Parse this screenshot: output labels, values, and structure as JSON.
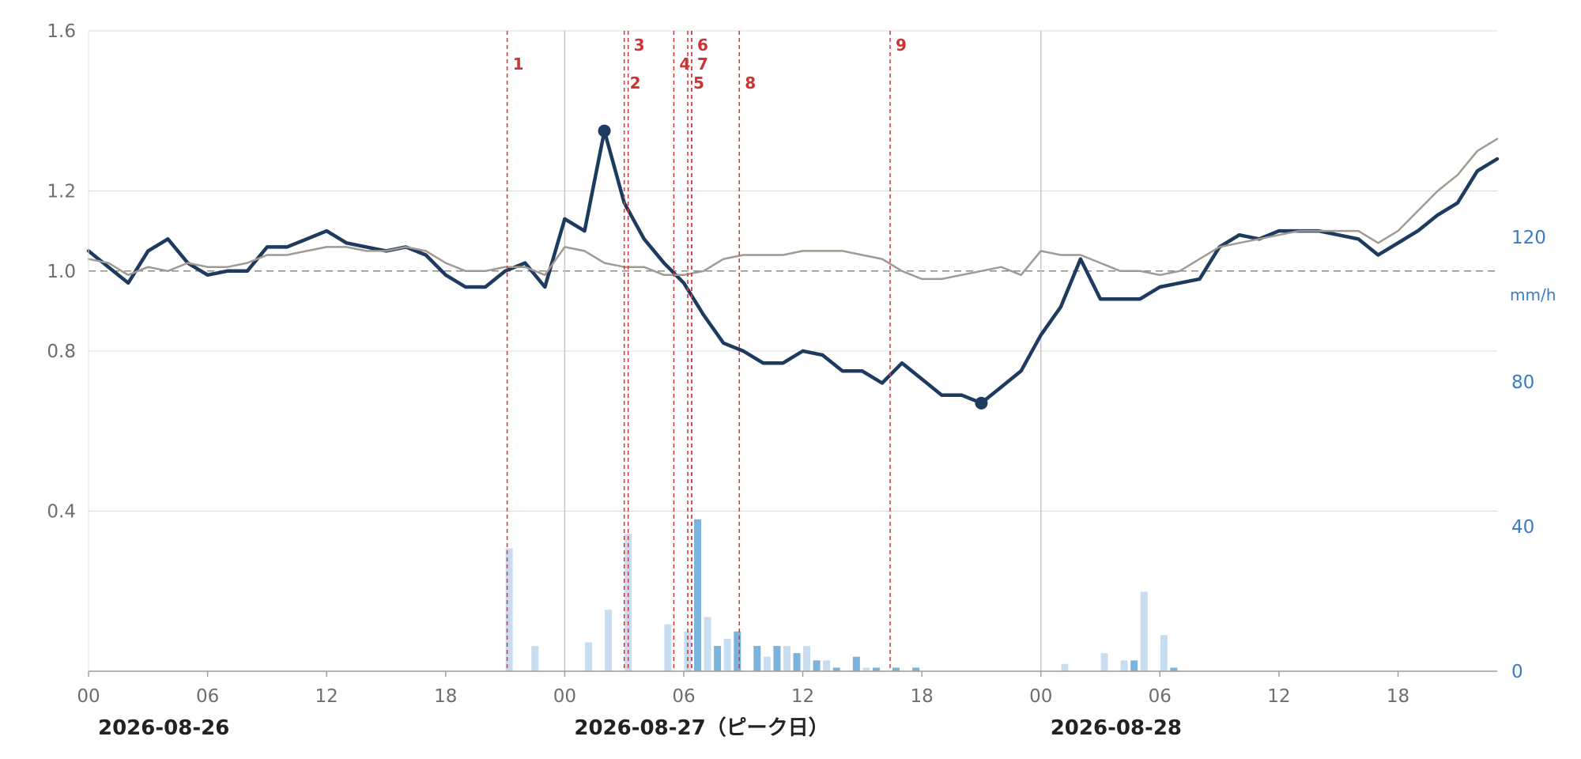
{
  "chart_data": {
    "type": "line",
    "x_start": "2026-08-26 00:00",
    "x_step_hours": 1,
    "x_ticks": [
      {
        "label": "00",
        "hour": 0
      },
      {
        "label": "06",
        "hour": 6
      },
      {
        "label": "12",
        "hour": 12
      },
      {
        "label": "18",
        "hour": 18
      },
      {
        "label": "00",
        "hour": 24
      },
      {
        "label": "06",
        "hour": 30
      },
      {
        "label": "12",
        "hour": 36
      },
      {
        "label": "18",
        "hour": 42
      },
      {
        "label": "00",
        "hour": 48
      },
      {
        "label": "06",
        "hour": 54
      },
      {
        "label": "12",
        "hour": 60
      },
      {
        "label": "18",
        "hour": 66
      }
    ],
    "day_labels": [
      {
        "label": "2026-08-26",
        "hour": 0
      },
      {
        "label": "2026-08-27（ピーク日）",
        "hour": 24
      },
      {
        "label": "2026-08-28",
        "hour": 48
      }
    ],
    "xlim": [
      0,
      71
    ],
    "y_left": {
      "ticks": [
        0.4,
        0.8,
        1.0,
        1.2,
        1.6
      ],
      "min": 0,
      "max": 1.6
    },
    "y_right": {
      "unit": "mm/h",
      "ticks": [
        0,
        40,
        80,
        120
      ],
      "min": 0,
      "max": 120
    },
    "reference_line": 1.0,
    "series": [
      {
        "color": "#1d3a5f",
        "values": [
          1.05,
          1.01,
          0.97,
          1.05,
          1.08,
          1.02,
          0.99,
          1.0,
          1.0,
          1.06,
          1.06,
          1.08,
          1.1,
          1.07,
          1.06,
          1.05,
          1.06,
          1.04,
          0.99,
          0.96,
          0.96,
          1.0,
          1.02,
          0.96,
          1.13,
          1.1,
          1.35,
          1.17,
          1.08,
          1.02,
          0.97,
          0.89,
          0.82,
          0.8,
          0.77,
          0.77,
          0.8,
          0.79,
          0.75,
          0.75,
          0.72,
          0.77,
          0.73,
          0.69,
          0.69,
          0.67,
          0.71,
          0.75,
          0.84,
          0.91,
          1.03,
          0.93,
          0.93,
          0.93,
          0.96,
          0.97,
          0.98,
          1.06,
          1.09,
          1.08,
          1.1,
          1.1,
          1.1,
          1.09,
          1.08,
          1.04,
          1.07,
          1.1,
          1.14,
          1.17,
          1.25,
          1.28
        ]
      },
      {
        "color": "#a09a92",
        "values": [
          1.03,
          1.02,
          0.99,
          1.01,
          1.0,
          1.02,
          1.01,
          1.01,
          1.02,
          1.04,
          1.04,
          1.05,
          1.06,
          1.06,
          1.05,
          1.05,
          1.06,
          1.05,
          1.02,
          1.0,
          1.0,
          1.01,
          1.01,
          0.99,
          1.06,
          1.05,
          1.02,
          1.01,
          1.01,
          0.99,
          0.99,
          1.0,
          1.03,
          1.04,
          1.04,
          1.04,
          1.05,
          1.05,
          1.05,
          1.04,
          1.03,
          1.0,
          0.98,
          0.98,
          0.99,
          1.0,
          1.01,
          0.99,
          1.05,
          1.04,
          1.04,
          1.02,
          1.0,
          1.0,
          0.99,
          1.0,
          1.03,
          1.06,
          1.07,
          1.08,
          1.09,
          1.1,
          1.1,
          1.1,
          1.1,
          1.07,
          1.1,
          1.15,
          1.2,
          1.24,
          1.3,
          1.33
        ]
      }
    ],
    "markers": [
      {
        "hour": 26,
        "value": 1.35
      },
      {
        "hour": 45,
        "value": 0.67
      }
    ],
    "bars": [
      {
        "hour": 21.2,
        "value": 34,
        "color": "#c8ddf0"
      },
      {
        "hour": 22.5,
        "value": 7,
        "color": "#c8ddf0"
      },
      {
        "hour": 25.2,
        "value": 8,
        "color": "#c8ddf0"
      },
      {
        "hour": 26.2,
        "value": 17,
        "color": "#c8ddf0"
      },
      {
        "hour": 27.2,
        "value": 38,
        "color": "#c8ddf0"
      },
      {
        "hour": 29.2,
        "value": 13,
        "color": "#c8ddf0"
      },
      {
        "hour": 30.2,
        "value": 11,
        "color": "#c8ddf0"
      },
      {
        "hour": 30.7,
        "value": 42,
        "color": "#7ab3dc"
      },
      {
        "hour": 31.2,
        "value": 15,
        "color": "#c8ddf0"
      },
      {
        "hour": 31.7,
        "value": 7,
        "color": "#7ab3dc"
      },
      {
        "hour": 32.2,
        "value": 9,
        "color": "#c8ddf0"
      },
      {
        "hour": 32.7,
        "value": 11,
        "color": "#7ab3dc"
      },
      {
        "hour": 33.7,
        "value": 7,
        "color": "#7ab3dc"
      },
      {
        "hour": 34.2,
        "value": 4,
        "color": "#c8ddf0"
      },
      {
        "hour": 34.7,
        "value": 7,
        "color": "#7ab3dc"
      },
      {
        "hour": 35.2,
        "value": 7,
        "color": "#c8ddf0"
      },
      {
        "hour": 35.7,
        "value": 5,
        "color": "#7ab3dc"
      },
      {
        "hour": 36.2,
        "value": 7,
        "color": "#c8ddf0"
      },
      {
        "hour": 36.7,
        "value": 3,
        "color": "#7ab3dc"
      },
      {
        "hour": 37.2,
        "value": 3,
        "color": "#c8ddf0"
      },
      {
        "hour": 37.7,
        "value": 1,
        "color": "#7ab3dc"
      },
      {
        "hour": 38.7,
        "value": 4,
        "color": "#7ab3dc"
      },
      {
        "hour": 39.2,
        "value": 1,
        "color": "#c8ddf0"
      },
      {
        "hour": 39.7,
        "value": 1,
        "color": "#7ab3dc"
      },
      {
        "hour": 40.7,
        "value": 1,
        "color": "#7ab3dc"
      },
      {
        "hour": 41.7,
        "value": 1,
        "color": "#7ab3dc"
      },
      {
        "hour": 49.2,
        "value": 2,
        "color": "#c8ddf0"
      },
      {
        "hour": 51.2,
        "value": 5,
        "color": "#c8ddf0"
      },
      {
        "hour": 52.2,
        "value": 3,
        "color": "#c8ddf0"
      },
      {
        "hour": 52.7,
        "value": 3,
        "color": "#7ab3dc"
      },
      {
        "hour": 53.2,
        "value": 22,
        "color": "#c8ddf0"
      },
      {
        "hour": 54.2,
        "value": 10,
        "color": "#c8ddf0"
      },
      {
        "hour": 54.7,
        "value": 1,
        "color": "#7ab3dc"
      }
    ],
    "events": [
      {
        "label": "1",
        "hour": 21.1,
        "row": 1
      },
      {
        "label": "2",
        "hour": 27.0,
        "row": 2
      },
      {
        "label": "3",
        "hour": 27.2,
        "row": 0
      },
      {
        "label": "4",
        "hour": 29.5,
        "row": 1
      },
      {
        "label": "5",
        "hour": 30.2,
        "row": 2
      },
      {
        "label": "6",
        "hour": 30.4,
        "row": 0
      },
      {
        "label": "7",
        "hour": 30.4,
        "row": 1
      },
      {
        "label": "8",
        "hour": 32.8,
        "row": 2
      },
      {
        "label": "9",
        "hour": 40.4,
        "row": 0
      }
    ]
  }
}
